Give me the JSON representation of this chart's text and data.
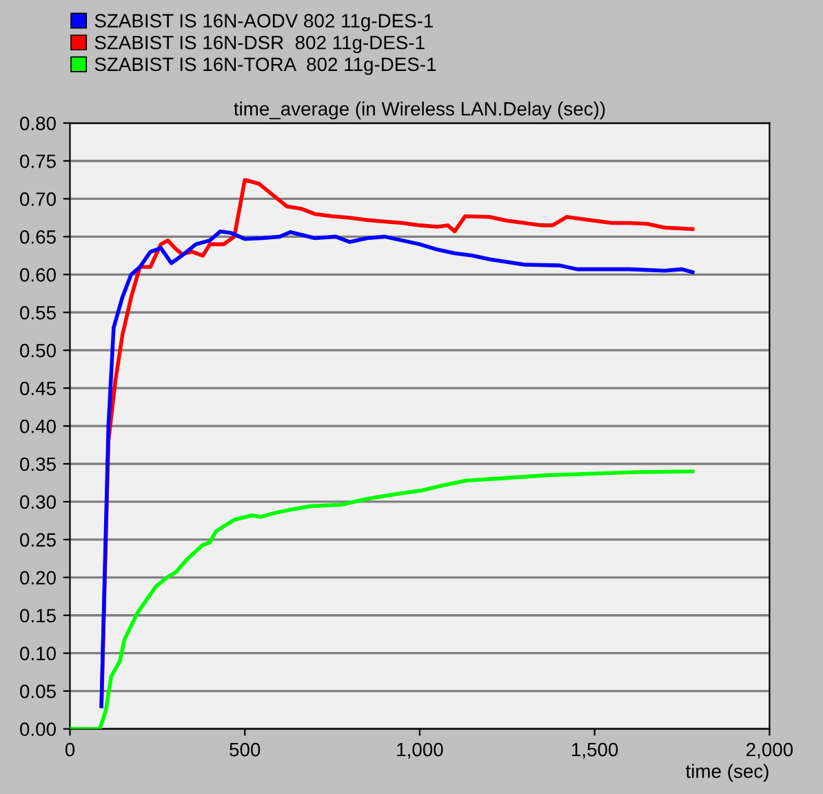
{
  "chart_data": {
    "type": "line",
    "title": "time_average (in Wireless LAN.Delay (sec))",
    "xlabel": "time (sec)",
    "xlim": [
      0,
      2000
    ],
    "xticks": [
      0,
      500,
      {
        "value": 1000,
        "label": "1,000"
      },
      {
        "value": 1500,
        "label": "1,500"
      },
      {
        "value": 2000,
        "label": "2,000"
      }
    ],
    "ylim": [
      0,
      0.8
    ],
    "yticks": [
      {
        "value": 0,
        "label": "0.00"
      },
      {
        "value": 0.05,
        "label": "0.05"
      },
      {
        "value": 0.1,
        "label": "0.10"
      },
      {
        "value": 0.15,
        "label": "0.15"
      },
      {
        "value": 0.2,
        "label": "0.20"
      },
      {
        "value": 0.25,
        "label": "0.25"
      },
      {
        "value": 0.3,
        "label": "0.30"
      },
      {
        "value": 0.35,
        "label": "0.35"
      },
      {
        "value": 0.4,
        "label": "0.40"
      },
      {
        "value": 0.45,
        "label": "0.45"
      },
      {
        "value": 0.5,
        "label": "0.50"
      },
      {
        "value": 0.55,
        "label": "0.55"
      },
      {
        "value": 0.6,
        "label": "0.60"
      },
      {
        "value": 0.65,
        "label": "0.65"
      },
      {
        "value": 0.7,
        "label": "0.70"
      },
      {
        "value": 0.75,
        "label": "0.75"
      },
      {
        "value": 0.8,
        "label": "0.80"
      }
    ],
    "grid": "y",
    "legend": "top left",
    "marker": "none",
    "line_style": "solid",
    "series": [
      {
        "name": "SZABIST IS 16N-AODV 802 11g-DES-1",
        "color": "#0000ff",
        "x": [
          90,
          110,
          125,
          150,
          175,
          200,
          230,
          260,
          290,
          320,
          360,
          400,
          430,
          460,
          500,
          550,
          600,
          630,
          700,
          760,
          800,
          850,
          900,
          950,
          1000,
          1050,
          1100,
          1150,
          1200,
          1300,
          1400,
          1450,
          1500,
          1600,
          1700,
          1750,
          1780
        ],
        "values": [
          0.03,
          0.4,
          0.53,
          0.57,
          0.6,
          0.61,
          0.63,
          0.635,
          0.615,
          0.625,
          0.64,
          0.645,
          0.657,
          0.655,
          0.647,
          0.648,
          0.65,
          0.656,
          0.648,
          0.65,
          0.643,
          0.648,
          0.65,
          0.645,
          0.64,
          0.633,
          0.628,
          0.625,
          0.62,
          0.613,
          0.612,
          0.607,
          0.607,
          0.607,
          0.605,
          0.607,
          0.603
        ]
      },
      {
        "name": "SZABIST IS 16N-DSR  802 11g-DES-1",
        "color": "#ff0000",
        "x": [
          90,
          110,
          130,
          150,
          175,
          200,
          230,
          260,
          280,
          300,
          320,
          350,
          380,
          400,
          440,
          470,
          500,
          540,
          580,
          620,
          660,
          700,
          750,
          800,
          850,
          900,
          950,
          1000,
          1050,
          1080,
          1100,
          1130,
          1200,
          1250,
          1300,
          1350,
          1380,
          1420,
          1500,
          1550,
          1600,
          1650,
          1700,
          1780
        ],
        "values": [
          0.03,
          0.38,
          0.46,
          0.52,
          0.57,
          0.61,
          0.61,
          0.64,
          0.645,
          0.635,
          0.627,
          0.63,
          0.625,
          0.64,
          0.64,
          0.65,
          0.725,
          0.72,
          0.705,
          0.69,
          0.687,
          0.68,
          0.677,
          0.675,
          0.672,
          0.67,
          0.668,
          0.665,
          0.663,
          0.665,
          0.657,
          0.677,
          0.676,
          0.671,
          0.668,
          0.665,
          0.665,
          0.676,
          0.671,
          0.668,
          0.668,
          0.667,
          0.662,
          0.66
        ]
      },
      {
        "name": "SZABIST IS 16N-TORA  802 11g-DES-1",
        "color": "#00ff00",
        "x": [
          0,
          85,
          102,
          118,
          143,
          156,
          194,
          246,
          277,
          303,
          335,
          380,
          399,
          418,
          469,
          520,
          546,
          584,
          636,
          687,
          776,
          853,
          930,
          1006,
          1070,
          1134,
          1237,
          1365,
          1492,
          1620,
          1780
        ],
        "values": [
          0,
          0,
          0.023,
          0.069,
          0.09,
          0.118,
          0.154,
          0.188,
          0.2,
          0.207,
          0.224,
          0.243,
          0.246,
          0.261,
          0.276,
          0.282,
          0.28,
          0.285,
          0.29,
          0.294,
          0.296,
          0.304,
          0.31,
          0.315,
          0.322,
          0.328,
          0.331,
          0.335,
          0.337,
          0.339,
          0.34
        ]
      }
    ]
  }
}
